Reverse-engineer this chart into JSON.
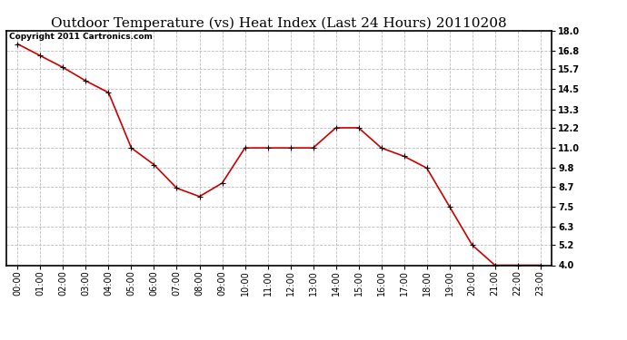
{
  "title": "Outdoor Temperature (vs) Heat Index (Last 24 Hours) 20110208",
  "copyright_text": "Copyright 2011 Cartronics.com",
  "x_labels": [
    "00:00",
    "01:00",
    "02:00",
    "03:00",
    "04:00",
    "05:00",
    "06:00",
    "07:00",
    "08:00",
    "09:00",
    "10:00",
    "11:00",
    "12:00",
    "13:00",
    "14:00",
    "15:00",
    "16:00",
    "17:00",
    "18:00",
    "19:00",
    "20:00",
    "21:00",
    "22:00",
    "23:00"
  ],
  "y_values": [
    17.2,
    16.5,
    15.8,
    15.0,
    14.3,
    11.0,
    10.0,
    8.6,
    8.1,
    8.9,
    11.0,
    11.0,
    11.0,
    11.0,
    12.2,
    12.2,
    11.0,
    10.5,
    9.8,
    7.5,
    5.2,
    4.0,
    4.0,
    4.0
  ],
  "line_color": "#cc0000",
  "marker": "+",
  "marker_color": "#000000",
  "marker_size": 5,
  "line_width": 1.2,
  "y_min": 4.0,
  "y_max": 18.0,
  "y_ticks": [
    4.0,
    5.2,
    6.3,
    7.5,
    8.7,
    9.8,
    11.0,
    12.2,
    13.3,
    14.5,
    15.7,
    16.8,
    18.0
  ],
  "background_color": "#ffffff",
  "plot_bg_color": "#ffffff",
  "grid_color": "#bbbbbb",
  "title_fontsize": 11,
  "tick_fontsize": 7,
  "copyright_fontsize": 6.5
}
